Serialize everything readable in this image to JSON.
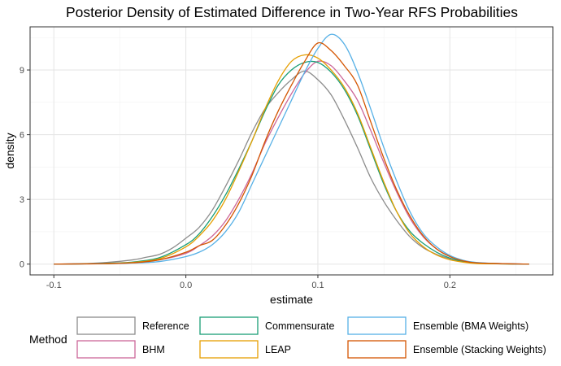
{
  "chart_data": {
    "type": "line",
    "subtype": "density",
    "title": "Posterior Density of Estimated Difference in Two-Year RFS Probabilities",
    "xlabel": "estimate",
    "ylabel": "density",
    "xlim": [
      -0.118,
      0.278
    ],
    "ylim": [
      -0.5,
      11.0
    ],
    "x_ticks": [
      -0.1,
      0.0,
      0.1,
      0.2
    ],
    "x_tick_labels": [
      "-0.1",
      "0.0",
      "0.1",
      "0.2"
    ],
    "x_minor_ticks": [
      -0.05,
      0.05,
      0.15,
      0.25
    ],
    "y_ticks": [
      0,
      3,
      6,
      9
    ],
    "y_tick_labels": [
      "0",
      "3",
      "6",
      "9"
    ],
    "y_minor_ticks": [
      1.5,
      4.5,
      7.5,
      10.5
    ],
    "grid": true,
    "legend": {
      "title": "Method",
      "position": "bottom"
    },
    "series": [
      {
        "name": "Reference",
        "color": "#8c8c8c",
        "points": [
          [
            -0.1,
            0.0
          ],
          [
            -0.08,
            0.02
          ],
          [
            -0.06,
            0.08
          ],
          [
            -0.04,
            0.2
          ],
          [
            -0.03,
            0.32
          ],
          [
            -0.02,
            0.45
          ],
          [
            -0.01,
            0.75
          ],
          [
            0.0,
            1.2
          ],
          [
            0.01,
            1.7
          ],
          [
            0.02,
            2.5
          ],
          [
            0.03,
            3.6
          ],
          [
            0.04,
            4.8
          ],
          [
            0.05,
            6.1
          ],
          [
            0.06,
            7.2
          ],
          [
            0.07,
            7.95
          ],
          [
            0.08,
            8.55
          ],
          [
            0.09,
            8.95
          ],
          [
            0.1,
            8.55
          ],
          [
            0.11,
            7.85
          ],
          [
            0.12,
            6.7
          ],
          [
            0.13,
            5.4
          ],
          [
            0.14,
            4.0
          ],
          [
            0.15,
            2.9
          ],
          [
            0.16,
            2.0
          ],
          [
            0.17,
            1.25
          ],
          [
            0.18,
            0.75
          ],
          [
            0.19,
            0.45
          ],
          [
            0.2,
            0.25
          ],
          [
            0.21,
            0.12
          ],
          [
            0.22,
            0.06
          ],
          [
            0.24,
            0.02
          ],
          [
            0.26,
            0.0
          ]
        ]
      },
      {
        "name": "BHM",
        "color": "#cc6699",
        "points": [
          [
            -0.1,
            0.0
          ],
          [
            -0.08,
            0.01
          ],
          [
            -0.06,
            0.03
          ],
          [
            -0.04,
            0.08
          ],
          [
            -0.02,
            0.2
          ],
          [
            0.0,
            0.5
          ],
          [
            0.01,
            0.85
          ],
          [
            0.02,
            1.3
          ],
          [
            0.03,
            2.0
          ],
          [
            0.04,
            3.0
          ],
          [
            0.05,
            4.2
          ],
          [
            0.06,
            5.6
          ],
          [
            0.07,
            6.8
          ],
          [
            0.08,
            7.9
          ],
          [
            0.09,
            8.85
          ],
          [
            0.1,
            9.4
          ],
          [
            0.11,
            9.2
          ],
          [
            0.12,
            8.5
          ],
          [
            0.13,
            7.6
          ],
          [
            0.14,
            6.2
          ],
          [
            0.15,
            4.7
          ],
          [
            0.16,
            3.3
          ],
          [
            0.17,
            2.1
          ],
          [
            0.18,
            1.25
          ],
          [
            0.19,
            0.7
          ],
          [
            0.2,
            0.35
          ],
          [
            0.21,
            0.16
          ],
          [
            0.22,
            0.07
          ],
          [
            0.24,
            0.02
          ],
          [
            0.26,
            0.0
          ]
        ]
      },
      {
        "name": "Commensurate",
        "color": "#1a9e77",
        "points": [
          [
            -0.1,
            0.0
          ],
          [
            -0.08,
            0.01
          ],
          [
            -0.06,
            0.04
          ],
          [
            -0.04,
            0.1
          ],
          [
            -0.02,
            0.3
          ],
          [
            0.0,
            0.9
          ],
          [
            0.01,
            1.4
          ],
          [
            0.02,
            2.2
          ],
          [
            0.03,
            3.2
          ],
          [
            0.04,
            4.4
          ],
          [
            0.05,
            5.7
          ],
          [
            0.06,
            7.1
          ],
          [
            0.07,
            8.3
          ],
          [
            0.08,
            9.0
          ],
          [
            0.09,
            9.35
          ],
          [
            0.1,
            9.35
          ],
          [
            0.11,
            8.9
          ],
          [
            0.12,
            8.1
          ],
          [
            0.13,
            6.9
          ],
          [
            0.14,
            5.3
          ],
          [
            0.15,
            3.7
          ],
          [
            0.16,
            2.4
          ],
          [
            0.17,
            1.5
          ],
          [
            0.18,
            0.95
          ],
          [
            0.19,
            0.55
          ],
          [
            0.2,
            0.28
          ],
          [
            0.21,
            0.12
          ],
          [
            0.22,
            0.05
          ],
          [
            0.24,
            0.01
          ],
          [
            0.26,
            0.0
          ]
        ]
      },
      {
        "name": "LEAP",
        "color": "#e69f00",
        "points": [
          [
            -0.1,
            0.0
          ],
          [
            -0.08,
            0.01
          ],
          [
            -0.06,
            0.03
          ],
          [
            -0.04,
            0.08
          ],
          [
            -0.02,
            0.25
          ],
          [
            0.0,
            0.8
          ],
          [
            0.01,
            1.3
          ],
          [
            0.02,
            2.0
          ],
          [
            0.03,
            3.0
          ],
          [
            0.04,
            4.3
          ],
          [
            0.05,
            5.7
          ],
          [
            0.06,
            7.2
          ],
          [
            0.07,
            8.5
          ],
          [
            0.08,
            9.4
          ],
          [
            0.09,
            9.7
          ],
          [
            0.1,
            9.55
          ],
          [
            0.11,
            9.0
          ],
          [
            0.12,
            8.2
          ],
          [
            0.13,
            7.0
          ],
          [
            0.14,
            5.4
          ],
          [
            0.15,
            3.8
          ],
          [
            0.16,
            2.4
          ],
          [
            0.17,
            1.4
          ],
          [
            0.18,
            0.8
          ],
          [
            0.19,
            0.42
          ],
          [
            0.2,
            0.2
          ],
          [
            0.21,
            0.09
          ],
          [
            0.22,
            0.03
          ],
          [
            0.24,
            0.01
          ],
          [
            0.26,
            0.0
          ]
        ]
      },
      {
        "name": "Ensemble (BMA Weights)",
        "color": "#56b0e6",
        "points": [
          [
            -0.1,
            0.0
          ],
          [
            -0.08,
            0.01
          ],
          [
            -0.06,
            0.02
          ],
          [
            -0.04,
            0.05
          ],
          [
            -0.02,
            0.12
          ],
          [
            0.0,
            0.35
          ],
          [
            0.01,
            0.55
          ],
          [
            0.02,
            0.9
          ],
          [
            0.03,
            1.5
          ],
          [
            0.04,
            2.4
          ],
          [
            0.05,
            3.7
          ],
          [
            0.06,
            5.0
          ],
          [
            0.07,
            6.3
          ],
          [
            0.08,
            7.6
          ],
          [
            0.09,
            8.9
          ],
          [
            0.1,
            10.0
          ],
          [
            0.11,
            10.65
          ],
          [
            0.12,
            10.2
          ],
          [
            0.13,
            8.9
          ],
          [
            0.14,
            7.2
          ],
          [
            0.15,
            5.4
          ],
          [
            0.16,
            3.8
          ],
          [
            0.17,
            2.4
          ],
          [
            0.18,
            1.4
          ],
          [
            0.19,
            0.8
          ],
          [
            0.2,
            0.4
          ],
          [
            0.21,
            0.18
          ],
          [
            0.22,
            0.08
          ],
          [
            0.24,
            0.02
          ],
          [
            0.26,
            0.0
          ]
        ]
      },
      {
        "name": "Ensemble (Stacking Weights)",
        "color": "#d45500",
        "points": [
          [
            -0.1,
            0.0
          ],
          [
            -0.08,
            0.01
          ],
          [
            -0.06,
            0.02
          ],
          [
            -0.04,
            0.06
          ],
          [
            -0.02,
            0.2
          ],
          [
            0.0,
            0.55
          ],
          [
            0.01,
            0.85
          ],
          [
            0.02,
            1.1
          ],
          [
            0.03,
            1.8
          ],
          [
            0.04,
            2.8
          ],
          [
            0.05,
            4.1
          ],
          [
            0.06,
            5.7
          ],
          [
            0.07,
            7.1
          ],
          [
            0.08,
            8.3
          ],
          [
            0.09,
            9.4
          ],
          [
            0.1,
            10.25
          ],
          [
            0.11,
            9.9
          ],
          [
            0.12,
            9.2
          ],
          [
            0.13,
            8.3
          ],
          [
            0.14,
            6.6
          ],
          [
            0.15,
            4.9
          ],
          [
            0.16,
            3.4
          ],
          [
            0.17,
            2.2
          ],
          [
            0.18,
            1.3
          ],
          [
            0.19,
            0.7
          ],
          [
            0.2,
            0.35
          ],
          [
            0.21,
            0.15
          ],
          [
            0.22,
            0.06
          ],
          [
            0.24,
            0.02
          ],
          [
            0.26,
            0.0
          ]
        ]
      }
    ]
  }
}
